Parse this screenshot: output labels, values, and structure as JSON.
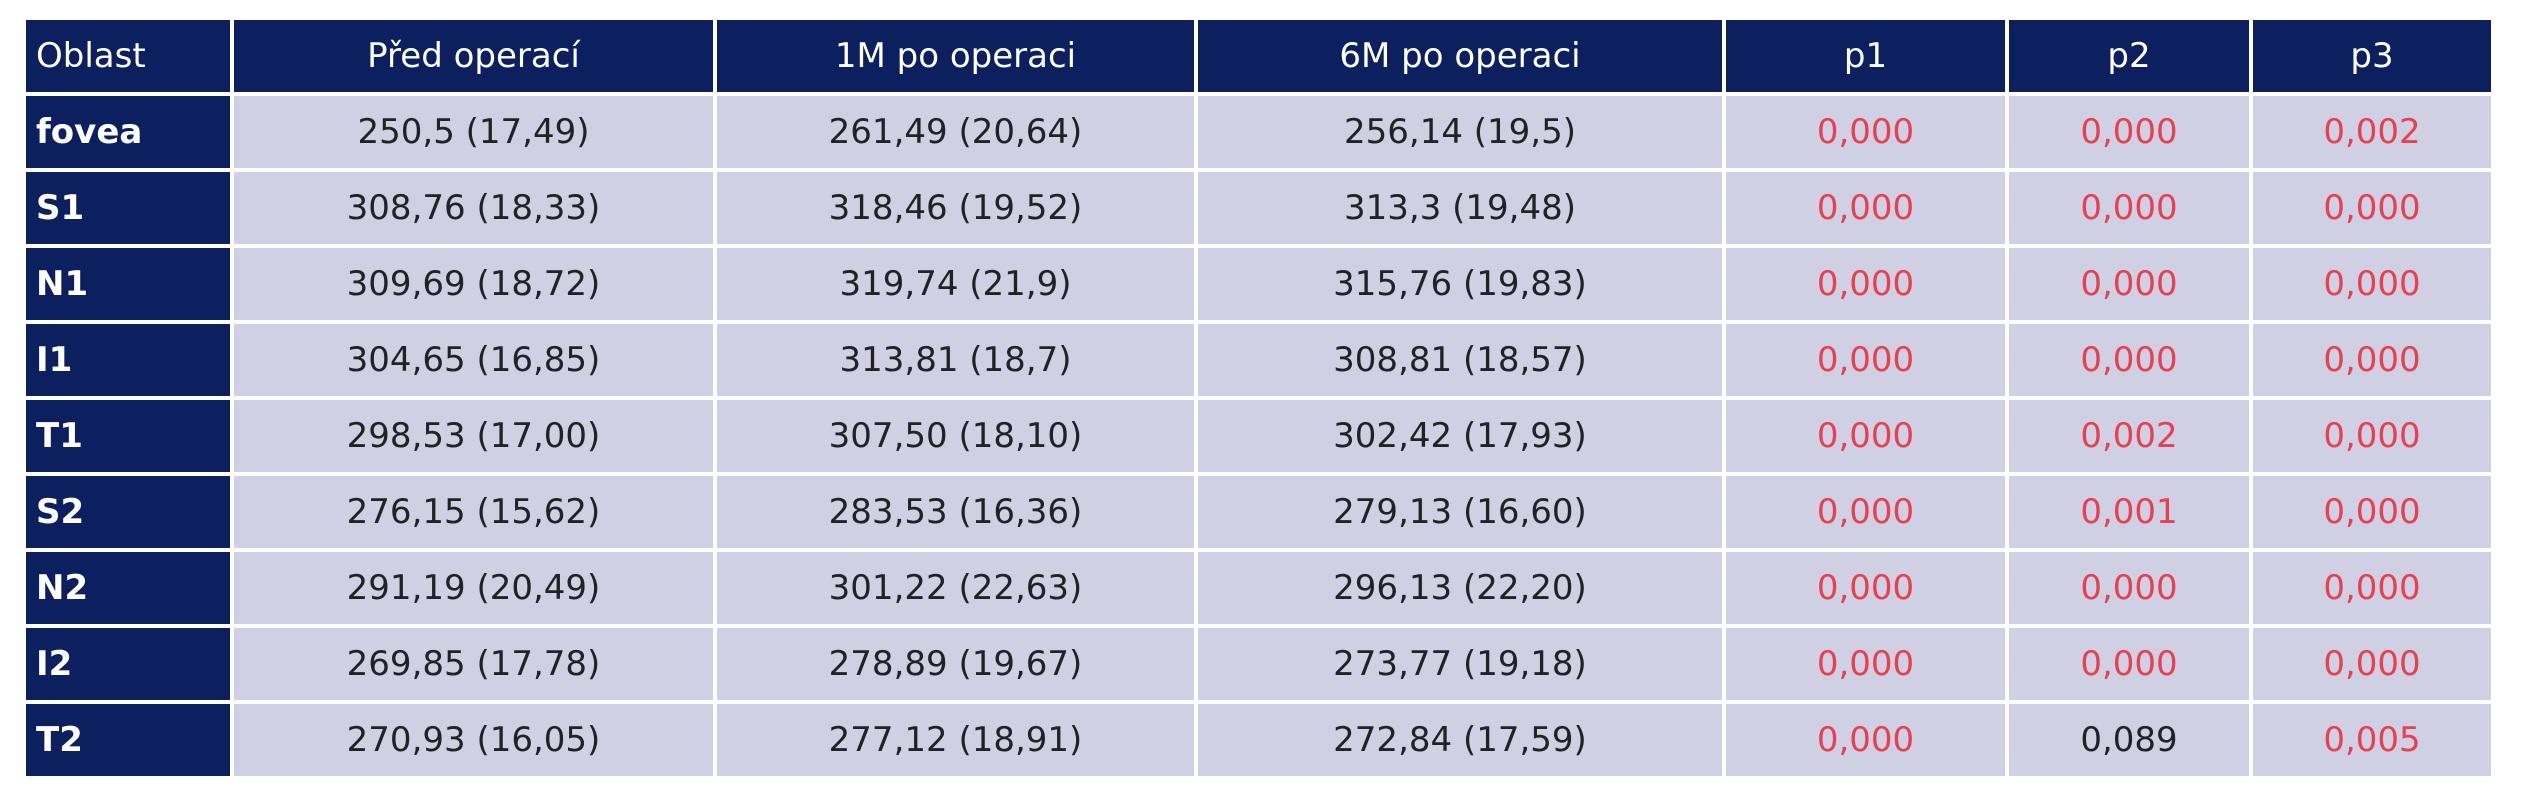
{
  "table": {
    "header": [
      "Oblast",
      "Před operací",
      "1M po operaci",
      "6M po operaci",
      "p1",
      "p2",
      "p3"
    ],
    "rows": [
      [
        "fovea",
        "250,5 (17,49)",
        "261,49 (20,64)",
        "256,14 (19,5)",
        "0,000",
        "0,000",
        "0,002"
      ],
      [
        "S1",
        "308,76 (18,33)",
        "318,46 (19,52)",
        "313,3 (19,48)",
        "0,000",
        "0,000",
        "0,000"
      ],
      [
        "N1",
        "309,69 (18,72)",
        "319,74 (21,9)",
        "315,76 (19,83)",
        "0,000",
        "0,000",
        "0,000"
      ],
      [
        "I1",
        "304,65 (16,85)",
        "313,81 (18,7)",
        "308,81 (18,57)",
        "0,000",
        "0,000",
        "0,000"
      ],
      [
        "T1",
        "298,53 (17,00)",
        "307,50 (18,10)",
        "302,42 (17,93)",
        "0,000",
        "0,002",
        "0,000"
      ],
      [
        "S2",
        "276,15 (15,62)",
        "283,53 (16,36)",
        "279,13 (16,60)",
        "0,000",
        "0,001",
        "0,000"
      ],
      [
        "N2",
        "291,19 (20,49)",
        "301,22 (22,63)",
        "296,13 (22,20)",
        "0,000",
        "0,000",
        "0,000"
      ],
      [
        "I2",
        "269,85 (17,78)",
        "278,89 (19,67)",
        "273,77 (19,18)",
        "0,000",
        "0,000",
        "0,000"
      ],
      [
        "T2",
        "270,93 (16,05)",
        "277,12 (18,91)",
        "272,84 (17,59)",
        "0,000",
        "0,089",
        "0,005"
      ]
    ]
  }
}
